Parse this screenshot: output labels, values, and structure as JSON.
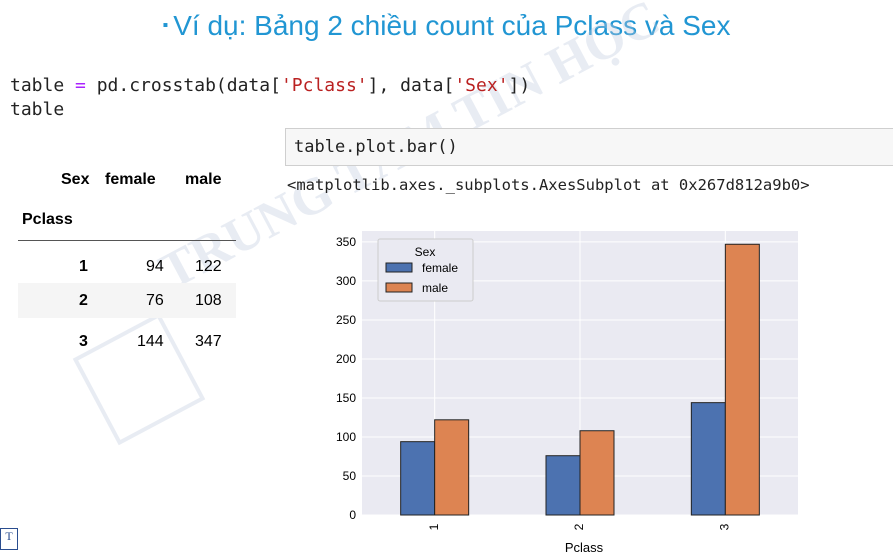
{
  "title": {
    "bullet": "▪",
    "text": "Ví dụ: Bảng 2 chiều count của Pclass và Sex"
  },
  "code1": {
    "line1_var": "table",
    "line1_eq": " = ",
    "line1_func": "pd.crosstab(data[",
    "line1_str1": "'Pclass'",
    "line1_mid": "], data[",
    "line1_str2": "'Sex'",
    "line1_end": "])",
    "line2": "table"
  },
  "code2": {
    "text": "table.plot.bar()"
  },
  "output": {
    "text": "<matplotlib.axes._subplots.AxesSubplot at 0x267d812a9b0>"
  },
  "crosstab": {
    "columns_label": "Sex",
    "columns": [
      "female",
      "male"
    ],
    "index_label": "Pclass",
    "rows": [
      {
        "index": "1",
        "female": "94",
        "male": "122"
      },
      {
        "index": "2",
        "female": "76",
        "male": "108"
      },
      {
        "index": "3",
        "female": "144",
        "male": "347"
      }
    ]
  },
  "watermark": {
    "text": "TRUNG TÂM TIN HỌC"
  },
  "logo": {
    "text": "T"
  },
  "colors": {
    "female": "#4c72b0",
    "male": "#dd8452",
    "plot_bg": "#eaeaf2",
    "title": "#2196d3"
  },
  "chart_data": {
    "type": "bar",
    "categories": [
      "1",
      "2",
      "3"
    ],
    "series": [
      {
        "name": "female",
        "values": [
          94,
          76,
          144
        ]
      },
      {
        "name": "male",
        "values": [
          122,
          108,
          347
        ]
      }
    ],
    "xlabel": "Pclass",
    "ylabel": "",
    "ylim": [
      0,
      364
    ],
    "yticks": [
      0,
      50,
      100,
      150,
      200,
      250,
      300,
      350
    ],
    "legend_title": "Sex",
    "legend_position": "top-left",
    "grid": true
  }
}
